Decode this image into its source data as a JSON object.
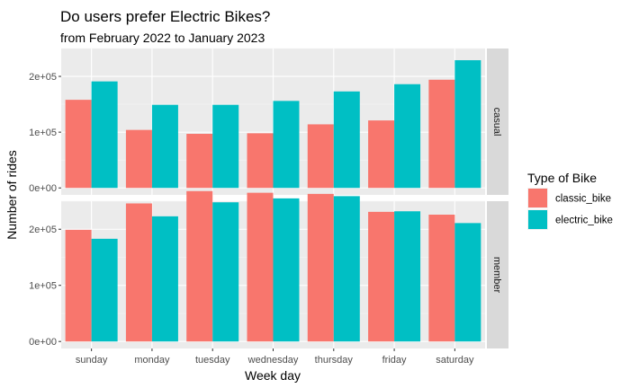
{
  "chart_data": {
    "type": "bar",
    "title": "Do users prefer Electric Bikes?",
    "subtitle": "from February 2022 to January 2023",
    "xlabel": "Week day",
    "ylabel": "Number of rides",
    "categories": [
      "sunday",
      "monday",
      "tuesday",
      "wednesday",
      "thursday",
      "friday",
      "saturday"
    ],
    "ylim": [
      0,
      250000
    ],
    "yticks": [
      0,
      100000,
      200000
    ],
    "ytick_labels": [
      "0e+00",
      "1e+05",
      "2e+05"
    ],
    "legend": {
      "title": "Type of Bike",
      "position": "right",
      "entries": [
        "classic_bike",
        "electric_bike"
      ]
    },
    "colors": {
      "classic_bike": "#F8766D",
      "electric_bike": "#00BFC4"
    },
    "grid": true,
    "panels": [
      {
        "label": "casual",
        "series": [
          {
            "name": "classic_bike",
            "values": [
              158000,
              104000,
              97000,
              98000,
              114000,
              121000,
              194000
            ]
          },
          {
            "name": "electric_bike",
            "values": [
              191000,
              149000,
              149000,
              156000,
              173000,
              186000,
              229000
            ]
          }
        ]
      },
      {
        "label": "member",
        "series": [
          {
            "name": "classic_bike",
            "values": [
              199000,
              246000,
              268000,
              265000,
              263000,
              231000,
              226000
            ]
          },
          {
            "name": "electric_bike",
            "values": [
              183000,
              223000,
              248000,
              255000,
              259000,
              232000,
              211000
            ]
          }
        ]
      }
    ]
  }
}
